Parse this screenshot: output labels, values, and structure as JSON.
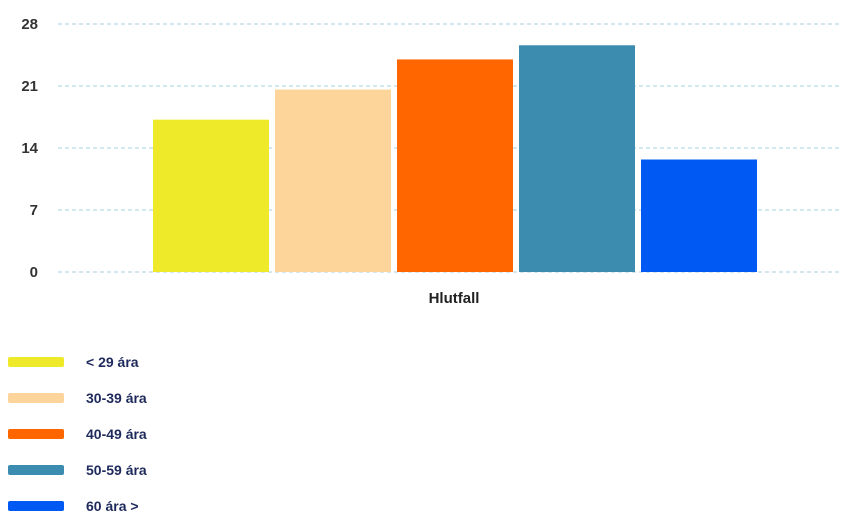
{
  "chart_data": {
    "type": "bar",
    "title": "",
    "xlabel": "",
    "ylabel": "",
    "categories": [
      "Hlutfall"
    ],
    "yticks": [
      0,
      7,
      14,
      21,
      28
    ],
    "ylim": [
      0,
      28
    ],
    "grid": true,
    "legend_position": "bottom-left",
    "series": [
      {
        "name": "< 29 ára",
        "values": [
          17.2
        ],
        "color": "#EEEA2A"
      },
      {
        "name": "30-39 ára",
        "values": [
          20.6
        ],
        "color": "#FDD59A"
      },
      {
        "name": "40-49 ára",
        "values": [
          24.0
        ],
        "color": "#FF6600"
      },
      {
        "name": "50-59 ára",
        "values": [
          25.6
        ],
        "color": "#3C8CB0"
      },
      {
        "name": "60 ára >",
        "values": [
          12.7
        ],
        "color": "#0059F2"
      }
    ]
  }
}
